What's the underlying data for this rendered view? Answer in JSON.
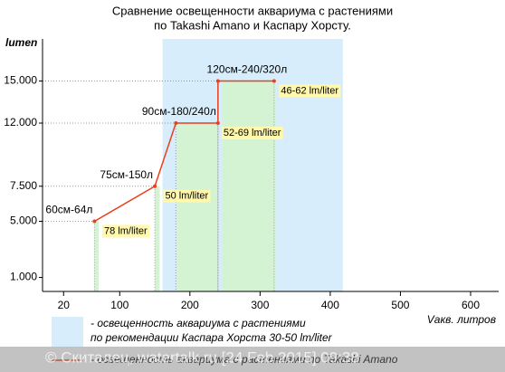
{
  "chart_data": {
    "type": "line",
    "title": [
      "Сравнение освещенности аквариума с растениями",
      "по Takashi Amano и Каспару Хорсту."
    ],
    "y_label": "lumen",
    "x_label": "Vакв. литров",
    "xlim": [
      -10,
      640
    ],
    "ylim": [
      0,
      18000
    ],
    "xticks": [
      20,
      100,
      200,
      300,
      400,
      500,
      600
    ],
    "yticks": [
      {
        "value": 1000,
        "label": "1.000"
      },
      {
        "value": 5000,
        "label": "5.000"
      },
      {
        "value": 7500,
        "label": "7.500"
      },
      {
        "value": 12000,
        "label": "12.000"
      },
      {
        "value": 15000,
        "label": "15.000"
      }
    ],
    "series": [
      {
        "name": "- освещенность аквариума с растениями по Takashi Amano",
        "color": "#e8401c",
        "x": [
          64,
          150,
          180,
          240,
          240,
          320
        ],
        "values": [
          5000,
          7500,
          12000,
          12000,
          15000,
          15000
        ],
        "point_labels": [
          "60см-64л",
          "75см-150л",
          null,
          "90см-180/240л",
          null,
          "120см-240/320л"
        ]
      }
    ],
    "region": {
      "name": [
        "- освещенность аквариума с растениями",
        "по рекомендации Каспара Хорста 30-50 lm/liter"
      ],
      "color": "#d8edfb",
      "x": [
        161,
        418
      ]
    },
    "bands": [
      {
        "x": [
          64,
          70
        ],
        "y": 5000,
        "label": "78 lm/liter"
      },
      {
        "x": [
          150,
          157
        ],
        "y": 7500,
        "label": "50 lm/liter"
      },
      {
        "x": [
          182,
          240
        ],
        "y": 12000,
        "label": "52-69 lm/liter"
      },
      {
        "x": [
          246,
          322
        ],
        "y": 15000,
        "label": "46-62 lm/liter"
      }
    ],
    "band_color": "#d3f3d3",
    "watermark": "© Скиталец, watertalk.ru [24 Feb 2015] 09:38"
  }
}
